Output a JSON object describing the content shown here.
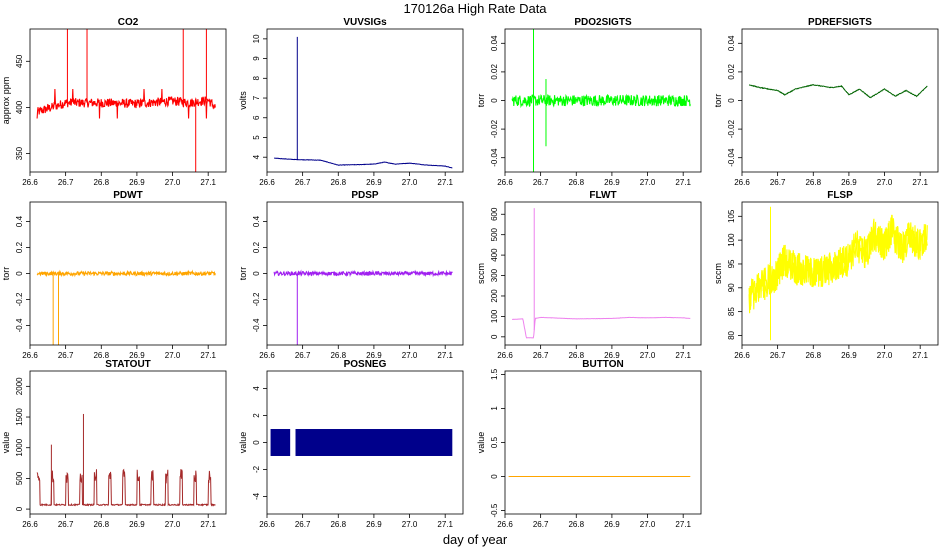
{
  "page": {
    "title": "170126a   High Rate Data",
    "xlabel": "day of year"
  },
  "chart_data": [
    {
      "type": "line",
      "title": "CO2",
      "ylabel": "approx ppm",
      "color": "#ff0000",
      "style": "noisy",
      "xlim": [
        26.6,
        27.15
      ],
      "ylim": [
        330,
        485
      ],
      "xticks": [
        26.6,
        26.7,
        26.8,
        26.9,
        27.0,
        27.1
      ],
      "yticks": [
        350,
        400,
        450
      ],
      "series": [
        {
          "x": [
            26.62,
            26.7,
            26.8,
            26.9,
            27.0,
            27.05,
            27.1,
            27.12
          ],
          "y": [
            395,
            405,
            405,
            404,
            407,
            405,
            408,
            400
          ]
        }
      ],
      "noise": 5,
      "spikes": [
        {
          "x": 26.705,
          "y": 485
        },
        {
          "x": 26.76,
          "y": 485
        },
        {
          "x": 27.03,
          "y": 485
        },
        {
          "x": 27.095,
          "y": 485
        },
        {
          "x": 27.065,
          "y": 330
        }
      ],
      "pulses": {
        "start": 26.62,
        "end": 27.12,
        "step": 0.025,
        "low": 388,
        "high": 420
      }
    },
    {
      "type": "line",
      "title": "VUVSIGs",
      "ylabel": "volts",
      "color": "#00008b",
      "style": "line",
      "xlim": [
        26.6,
        27.15
      ],
      "ylim": [
        3.25,
        10.5
      ],
      "xticks": [
        26.6,
        26.7,
        26.8,
        26.9,
        27.0,
        27.1
      ],
      "yticks": [
        4,
        5,
        6,
        7,
        8,
        9,
        10
      ],
      "series": [
        {
          "x": [
            26.62,
            26.68,
            26.75,
            26.8,
            26.85,
            26.9,
            26.93,
            26.96,
            27.0,
            27.05,
            27.1,
            27.12
          ],
          "y": [
            3.95,
            3.88,
            3.85,
            3.6,
            3.62,
            3.65,
            3.75,
            3.65,
            3.7,
            3.6,
            3.55,
            3.45
          ]
        }
      ],
      "noise": 0.02,
      "spikes": [
        {
          "x": 26.685,
          "y": 10.1
        }
      ]
    },
    {
      "type": "line",
      "title": "PDO2SIGTS",
      "ylabel": "torr",
      "color": "#00ff00",
      "style": "noisy",
      "xlim": [
        26.6,
        27.15
      ],
      "ylim": [
        -0.05,
        0.05
      ],
      "xticks": [
        26.6,
        26.7,
        26.8,
        26.9,
        27.0,
        27.1
      ],
      "yticks": [
        -0.04,
        -0.02,
        0.0,
        0.02,
        0.04
      ],
      "series": [
        {
          "x": [
            26.62,
            26.7,
            26.8,
            26.9,
            27.0,
            27.1,
            27.12
          ],
          "y": [
            0.0,
            0.0,
            0.0,
            0.0,
            0.0,
            0.0,
            0.0
          ]
        }
      ],
      "noise": 0.004,
      "spikes": [
        {
          "x": 26.68,
          "y": 0.05
        },
        {
          "x": 26.68,
          "y": -0.05
        },
        {
          "x": 26.715,
          "y": 0.015
        },
        {
          "x": 26.715,
          "y": -0.032
        }
      ]
    },
    {
      "type": "line",
      "title": "PDREFSIGTS",
      "ylabel": "torr",
      "color": "#006400",
      "style": "line",
      "xlim": [
        26.6,
        27.15
      ],
      "ylim": [
        -0.05,
        0.05
      ],
      "xticks": [
        26.6,
        26.7,
        26.8,
        26.9,
        27.0,
        27.1
      ],
      "yticks": [
        -0.04,
        -0.02,
        0.0,
        0.02,
        0.04
      ],
      "series": [
        {
          "x": [
            26.62,
            26.65,
            26.7,
            26.72,
            26.75,
            26.8,
            26.85,
            26.88,
            26.9,
            26.93,
            26.96,
            27.0,
            27.03,
            27.06,
            27.09,
            27.12
          ],
          "y": [
            0.011,
            0.009,
            0.007,
            0.004,
            0.008,
            0.011,
            0.009,
            0.01,
            0.004,
            0.008,
            0.002,
            0.008,
            0.003,
            0.007,
            0.003,
            0.01
          ]
        }
      ],
      "noise": 0.0005
    },
    {
      "type": "line",
      "title": "PDWT",
      "ylabel": "torr",
      "color": "#ffa500",
      "style": "noisy",
      "xlim": [
        26.6,
        27.15
      ],
      "ylim": [
        -0.55,
        0.55
      ],
      "xticks": [
        26.6,
        26.7,
        26.8,
        26.9,
        27.0,
        27.1
      ],
      "yticks": [
        -0.4,
        -0.2,
        0.0,
        0.2,
        0.4
      ],
      "series": [
        {
          "x": [
            26.62,
            26.7,
            26.8,
            26.9,
            27.0,
            27.1,
            27.12
          ],
          "y": [
            0.0,
            0.0,
            0.0,
            0.0,
            0.0,
            0.0,
            0.0
          ]
        }
      ],
      "noise": 0.015,
      "spikes": [
        {
          "x": 26.665,
          "y": -0.55
        },
        {
          "x": 26.68,
          "y": -0.55
        }
      ]
    },
    {
      "type": "line",
      "title": "PDSP",
      "ylabel": "torr",
      "color": "#a020f0",
      "style": "noisy",
      "xlim": [
        26.6,
        27.15
      ],
      "ylim": [
        -0.55,
        0.55
      ],
      "xticks": [
        26.6,
        26.7,
        26.8,
        26.9,
        27.0,
        27.1
      ],
      "yticks": [
        -0.4,
        -0.2,
        0.0,
        0.2,
        0.4
      ],
      "series": [
        {
          "x": [
            26.62,
            26.7,
            26.8,
            26.9,
            27.0,
            27.1,
            27.12
          ],
          "y": [
            0.0,
            0.0,
            0.0,
            0.0,
            0.0,
            0.0,
            0.0
          ]
        }
      ],
      "noise": 0.015,
      "spikes": [
        {
          "x": 26.685,
          "y": -0.55
        }
      ]
    },
    {
      "type": "line",
      "title": "FLWT",
      "ylabel": "sccm",
      "color": "#ee82ee",
      "style": "line",
      "xlim": [
        26.6,
        27.15
      ],
      "ylim": [
        -40,
        660
      ],
      "xticks": [
        26.6,
        26.7,
        26.8,
        26.9,
        27.0,
        27.1
      ],
      "yticks": [
        0,
        100,
        200,
        300,
        400,
        500,
        600
      ],
      "series": [
        {
          "x": [
            26.62,
            26.65,
            26.66,
            26.68,
            26.685,
            26.7,
            26.8,
            26.9,
            26.95,
            27.0,
            27.05,
            27.1,
            27.12
          ],
          "y": [
            85,
            88,
            -5,
            -5,
            90,
            95,
            88,
            90,
            95,
            93,
            95,
            93,
            90
          ]
        }
      ],
      "noise": 1,
      "spikes": [
        {
          "x": 26.682,
          "y": 630
        }
      ]
    },
    {
      "type": "line",
      "title": "FLSP",
      "ylabel": "sccm",
      "color": "#ffff00",
      "style": "oscillating",
      "xlim": [
        26.6,
        27.15
      ],
      "ylim": [
        78,
        108
      ],
      "xticks": [
        26.6,
        26.7,
        26.8,
        26.9,
        27.0,
        27.1
      ],
      "yticks": [
        80,
        85,
        90,
        95,
        100,
        105
      ],
      "series": [
        {
          "x": [
            26.62,
            26.65,
            26.7,
            26.72,
            26.75,
            26.8,
            26.85,
            26.9,
            26.92,
            26.95,
            26.97,
            27.0,
            27.02,
            27.05,
            27.07,
            27.1,
            27.12
          ],
          "y": [
            88,
            90,
            93,
            96,
            94,
            93,
            94,
            96,
            99,
            97,
            101,
            99,
            102,
            98,
            101,
            99,
            101
          ]
        }
      ],
      "noise": 3.5,
      "spikes": [
        {
          "x": 26.68,
          "y": 107
        },
        {
          "x": 26.68,
          "y": 79
        }
      ]
    },
    {
      "type": "line",
      "title": "STATOUT",
      "ylabel": "value",
      "color": "#a52a2a",
      "style": "pulses",
      "xlim": [
        26.6,
        27.15
      ],
      "ylim": [
        -80,
        2250
      ],
      "xticks": [
        26.6,
        26.7,
        26.8,
        26.9,
        27.0,
        27.1
      ],
      "yticks": [
        0,
        500,
        1000,
        1500,
        2000
      ],
      "series": [
        {
          "x": [
            26.62,
            27.12
          ],
          "y": [
            60,
            60
          ]
        }
      ],
      "noise": 0,
      "pulses": {
        "start": 26.62,
        "end": 27.12,
        "step": 0.04,
        "low": 60,
        "high": 650
      },
      "spikes": [
        {
          "x": 26.75,
          "y": 1550
        },
        {
          "x": 26.66,
          "y": 1050
        }
      ]
    },
    {
      "type": "area",
      "title": "POSNEG",
      "ylabel": "value",
      "color": "#00008b",
      "style": "band",
      "xlim": [
        26.6,
        27.15
      ],
      "ylim": [
        -5.3,
        5.3
      ],
      "xticks": [
        26.6,
        26.7,
        26.8,
        26.9,
        27.0,
        27.1
      ],
      "yticks": [
        -4,
        -2,
        0,
        2,
        4
      ],
      "band": {
        "from": 26.61,
        "to": 27.12,
        "low": -1,
        "high": 1,
        "gap": [
          26.665,
          26.68
        ]
      }
    },
    {
      "type": "line",
      "title": "BUTTON",
      "ylabel": "value",
      "color": "#ffa500",
      "style": "line",
      "xlim": [
        26.6,
        27.15
      ],
      "ylim": [
        -0.55,
        1.55
      ],
      "xticks": [
        26.6,
        26.7,
        26.8,
        26.9,
        27.0,
        27.1
      ],
      "yticks": [
        -0.5,
        0.0,
        0.5,
        1.0,
        1.5
      ],
      "series": [
        {
          "x": [
            26.61,
            27.12
          ],
          "y": [
            0,
            0
          ]
        }
      ],
      "noise": 0
    }
  ]
}
